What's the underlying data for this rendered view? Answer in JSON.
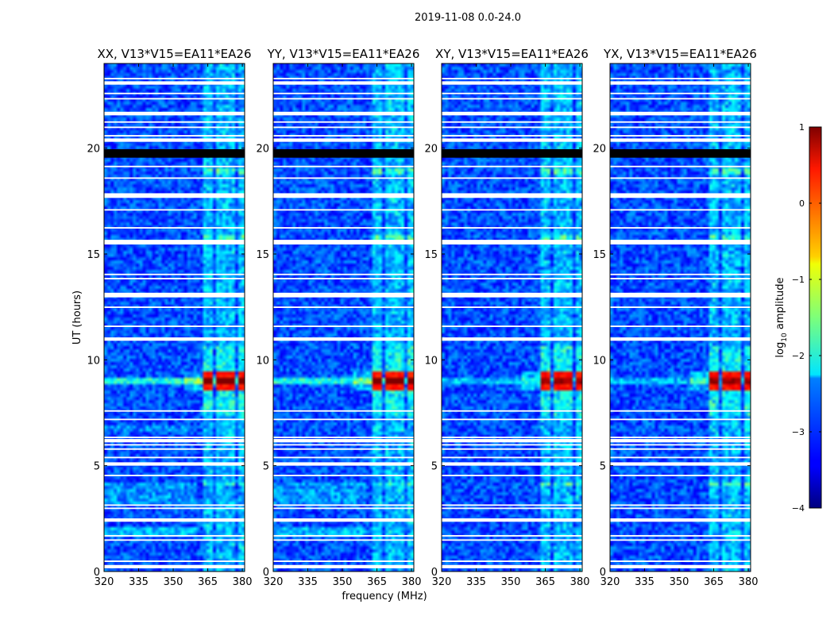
{
  "figure": {
    "suptitle": "2019-11-08 0.0-24.0"
  },
  "chart_data": {
    "type": "heatmap",
    "title": "2019-11-08 0.0-24.0",
    "xlabel": "frequency (MHz)",
    "ylabel": "UT (hours)",
    "xlim": [
      320,
      381
    ],
    "ylim": [
      0,
      24
    ],
    "xticks": [
      320,
      335,
      350,
      365,
      380
    ],
    "yticks": [
      0,
      5,
      10,
      15,
      20
    ],
    "panels": [
      {
        "title": "XX, V13*V15=EA11*EA26",
        "pol": "XX"
      },
      {
        "title": "YY, V13*V15=EA11*EA26",
        "pol": "YY"
      },
      {
        "title": "XY, V13*V15=EA11*EA26",
        "pol": "XY"
      },
      {
        "title": "YX, V13*V15=EA11*EA26",
        "pol": "YX"
      }
    ],
    "colorbar": {
      "label": "log10 amplitude",
      "label_base": "log",
      "label_sub": "10",
      "label_rest": " amplitude",
      "range": [
        -4,
        1
      ],
      "ticks": [
        "1",
        "0",
        "−1",
        "−2",
        "−3",
        "−4"
      ],
      "tick_values": [
        1,
        0,
        -1,
        -2,
        -3,
        -4
      ],
      "colormap": "jet"
    },
    "features": {
      "background_level": -3.0,
      "rfi_bands_mhz": [
        [
          363,
          367
        ],
        [
          368,
          372
        ],
        [
          373,
          377
        ],
        [
          378,
          382
        ]
      ],
      "strong_rfi_time_hours": [
        8.5,
        9.4
      ],
      "strong_rfi_level": 0.3,
      "flagged_black_hours": [
        [
          19.55,
          19.95
        ]
      ]
    }
  }
}
